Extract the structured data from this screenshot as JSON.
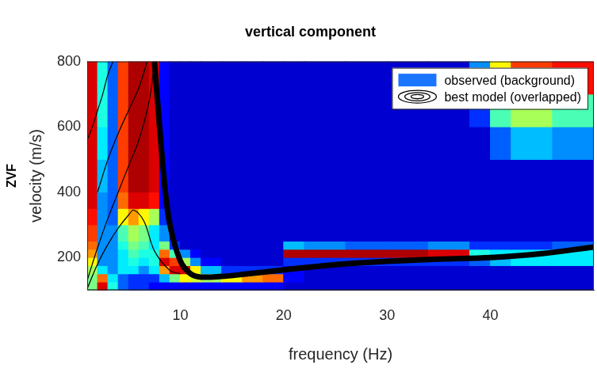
{
  "chart_data": {
    "type": "heatmap",
    "title": "vertical component",
    "x_label": "frequency (Hz)",
    "y_label": "velocity (m/s)",
    "annotations": [
      "ZVF"
    ],
    "xlim": [
      1,
      50
    ],
    "ylim": [
      100,
      800
    ],
    "xticks": [
      10,
      20,
      30,
      40
    ],
    "yticks": [
      200,
      400,
      600,
      800
    ],
    "grid": false,
    "legend": "upper right",
    "series": [
      {
        "name": "observed (background)",
        "type": "heatmap",
        "color": "#1a75ff",
        "zlim": [
          0,
          1
        ],
        "x_edges": [
          1,
          2,
          3,
          4,
          5,
          6,
          7,
          8,
          9,
          10,
          11,
          12,
          14,
          16,
          18,
          20,
          22,
          26,
          30,
          34,
          38,
          40,
          42,
          46,
          50
        ],
        "y_edges": [
          100,
          125,
          150,
          175,
          200,
          225,
          250,
          300,
          350,
          400,
          500,
          600,
          700,
          800
        ],
        "cells": [
          [
            0.45,
            0.9,
            0.35,
            0.15,
            0.1,
            0.1,
            0.05,
            0.05,
            0.05,
            0.05,
            0.05,
            0.05,
            0.05,
            0.05,
            0.05,
            0,
            0,
            0,
            0,
            0,
            0,
            0,
            0,
            0
          ],
          [
            0.45,
            0.75,
            0.3,
            0.15,
            0.1,
            0.1,
            0.1,
            0.25,
            0.45,
            0.6,
            0.55,
            0.5,
            0.6,
            0.7,
            0.75,
            0.05,
            0,
            0,
            0,
            0,
            0,
            0,
            0,
            0
          ],
          [
            0.5,
            0.3,
            0.2,
            0.3,
            0.3,
            0.2,
            0.3,
            0.7,
            0.9,
            0.9,
            0.6,
            0.25,
            0.1,
            0.1,
            0.1,
            0.05,
            0,
            0,
            0,
            0,
            0,
            0,
            0,
            0
          ],
          [
            0.6,
            0.2,
            0.2,
            0.3,
            0.35,
            0.3,
            0.35,
            0.9,
            0.8,
            0.5,
            0.2,
            0.05,
            0,
            0,
            0,
            0.1,
            0.1,
            0.1,
            0.1,
            0.1,
            0.15,
            0.25,
            0.3,
            0.3
          ],
          [
            0.7,
            0.2,
            0.2,
            0.3,
            0.4,
            0.35,
            0.35,
            0.75,
            0.4,
            0.2,
            0.05,
            0,
            0,
            0,
            0,
            0.95,
            0.95,
            0.95,
            0.95,
            0.9,
            0.35,
            0.3,
            0.3,
            0.3
          ],
          [
            0.75,
            0.2,
            0.2,
            0.35,
            0.45,
            0.4,
            0.3,
            0.45,
            0.1,
            0,
            0,
            0,
            0,
            0,
            0,
            0.25,
            0.2,
            0.15,
            0.15,
            0.2,
            0.1,
            0.1,
            0.1,
            0.15
          ],
          [
            0.8,
            0.2,
            0.2,
            0.4,
            0.5,
            0.45,
            0.3,
            0.2,
            0,
            0,
            0,
            0,
            0,
            0,
            0,
            0,
            0,
            0,
            0,
            0,
            0,
            0,
            0,
            0
          ],
          [
            0.85,
            0.2,
            0.15,
            0.6,
            0.7,
            0.6,
            0.5,
            0.1,
            0,
            0,
            0,
            0,
            0,
            0,
            0,
            0,
            0,
            0,
            0,
            0,
            0,
            0,
            0,
            0
          ],
          [
            0.9,
            0.2,
            0.15,
            0.75,
            0.9,
            0.9,
            0.85,
            0.05,
            0,
            0,
            0,
            0,
            0,
            0,
            0,
            0,
            0,
            0,
            0,
            0,
            0,
            0,
            0,
            0
          ],
          [
            0.9,
            0.25,
            0.15,
            0.8,
            0.95,
            0.95,
            0.9,
            0.05,
            0,
            0,
            0,
            0,
            0,
            0,
            0,
            0,
            0,
            0,
            0,
            0,
            0,
            0,
            0,
            0
          ],
          [
            0.9,
            0.3,
            0.15,
            0.8,
            0.95,
            0.95,
            0.9,
            0.05,
            0,
            0,
            0,
            0,
            0,
            0,
            0,
            0,
            0,
            0,
            0,
            0,
            0,
            0.15,
            0.25,
            0.2
          ],
          [
            0.9,
            0.35,
            0.15,
            0.8,
            0.95,
            0.95,
            0.9,
            0.05,
            0,
            0,
            0,
            0,
            0,
            0,
            0,
            0,
            0,
            0,
            0,
            0,
            0.1,
            0.4,
            0.5,
            0.4
          ],
          [
            0.9,
            0.35,
            0.15,
            0.8,
            0.95,
            0.95,
            0.9,
            0.05,
            0,
            0,
            0,
            0,
            0,
            0,
            0,
            0,
            0,
            0,
            0,
            0,
            0.2,
            0.6,
            0.8,
            0.85
          ]
        ]
      },
      {
        "name": "best model (overlapped)",
        "type": "line",
        "color": "#000000",
        "lines": [
          {
            "x": [
              7.5,
              8,
              8.5,
              9,
              10,
              11,
              12,
              14,
              16,
              20,
              25,
              30,
              35,
              40,
              45,
              50
            ],
            "y": [
              800,
              600,
              420,
              300,
              190,
              150,
              140,
              142,
              148,
              162,
              178,
              188,
              195,
              200,
              212,
              232
            ]
          },
          {
            "x": [
              1,
              2,
              3,
              4,
              5,
              5.5,
              6.5,
              7.5,
              9,
              10
            ],
            "y": [
              105,
              180,
              240,
              290,
              330,
              345,
              310,
              220,
              160,
              150
            ]
          },
          {
            "x": [
              1,
              2,
              3,
              4,
              5,
              6,
              7,
              7.5
            ],
            "y": [
              130,
              230,
              320,
              400,
              480,
              560,
              680,
              800
            ]
          },
          {
            "x": [
              2,
              3,
              4,
              5,
              6,
              6.8
            ],
            "y": [
              400,
              500,
              580,
              650,
              720,
              800
            ]
          },
          {
            "x": [
              1,
              1.5,
              2,
              2.5,
              3,
              3.5
            ],
            "y": [
              560,
              600,
              650,
              700,
              760,
              800
            ]
          }
        ]
      }
    ]
  }
}
